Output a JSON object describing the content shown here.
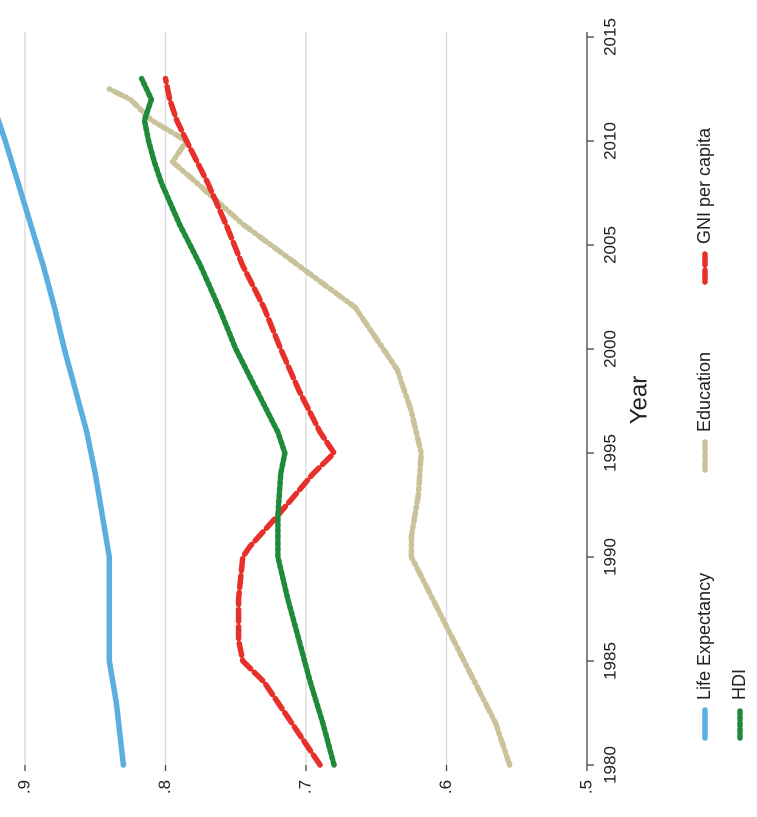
{
  "chart_data": {
    "type": "line",
    "orientation": "rotated-90-cw",
    "xlabel": "Year",
    "ylabel": "",
    "xlim": [
      1980,
      2015
    ],
    "ylim": [
      0.5,
      0.92
    ],
    "x_ticks": [
      1980,
      1985,
      1990,
      1995,
      2000,
      2005,
      2010,
      2015
    ],
    "x_tick_labels": [
      "1980",
      "1985",
      "1990",
      "1995",
      "2000",
      "2005",
      "2010",
      "2015"
    ],
    "y_ticks": [
      0.5,
      0.6,
      0.7,
      0.8,
      0.9
    ],
    "y_tick_labels": [
      ".5",
      ".6",
      ".7",
      ".8",
      ".9"
    ],
    "grid": "horizontal-at-y-ticks",
    "legend_position": "bottom",
    "series": [
      {
        "name": "Life Expectancy",
        "color": "#5aaee0",
        "style": "solid",
        "x": [
          1980,
          1983,
          1985,
          1988,
          1990,
          1992,
          1994,
          1996,
          1998,
          2000,
          2002,
          2004,
          2006,
          2008,
          2010,
          2012,
          2013
        ],
        "y": [
          0.83,
          0.835,
          0.84,
          0.84,
          0.84,
          0.845,
          0.85,
          0.856,
          0.864,
          0.872,
          0.879,
          0.887,
          0.896,
          0.905,
          0.914,
          0.924,
          0.93
        ]
      },
      {
        "name": "Education",
        "color": "#c9c29a",
        "style": "dash-dot",
        "x": [
          1980,
          1982,
          1984,
          1986,
          1988,
          1990,
          1991,
          1993,
          1995,
          1997,
          1999,
          2000,
          2002,
          2004,
          2006,
          2008,
          2009,
          2010,
          2011,
          2012,
          2012.5
        ],
        "y": [
          0.555,
          0.565,
          0.58,
          0.595,
          0.61,
          0.625,
          0.625,
          0.62,
          0.618,
          0.625,
          0.635,
          0.645,
          0.665,
          0.705,
          0.745,
          0.778,
          0.795,
          0.785,
          0.81,
          0.825,
          0.84
        ]
      },
      {
        "name": "GNI per capita",
        "color": "#e8302a",
        "style": "dashed",
        "x": [
          1980,
          1982,
          1984,
          1985,
          1986,
          1988,
          1990,
          1990.5,
          1992,
          1994,
          1995,
          1996,
          1998,
          2000,
          2002,
          2004,
          2006,
          2008,
          2010,
          2011,
          2012,
          2013
        ],
        "y": [
          0.69,
          0.71,
          0.73,
          0.745,
          0.748,
          0.748,
          0.745,
          0.74,
          0.72,
          0.695,
          0.68,
          0.69,
          0.705,
          0.718,
          0.73,
          0.745,
          0.757,
          0.77,
          0.785,
          0.792,
          0.797,
          0.8
        ]
      },
      {
        "name": "HDI",
        "color": "#1f8a3a",
        "style": "dotted",
        "x": [
          1980,
          1982,
          1984,
          1986,
          1988,
          1990,
          1992,
          1994,
          1995,
          1996,
          1998,
          2000,
          2002,
          2004,
          2006,
          2008,
          2009,
          2010,
          2011,
          2012,
          2013
        ],
        "y": [
          0.68,
          0.688,
          0.697,
          0.705,
          0.713,
          0.72,
          0.72,
          0.718,
          0.715,
          0.72,
          0.735,
          0.75,
          0.762,
          0.775,
          0.79,
          0.803,
          0.808,
          0.812,
          0.815,
          0.81,
          0.817
        ]
      }
    ]
  }
}
